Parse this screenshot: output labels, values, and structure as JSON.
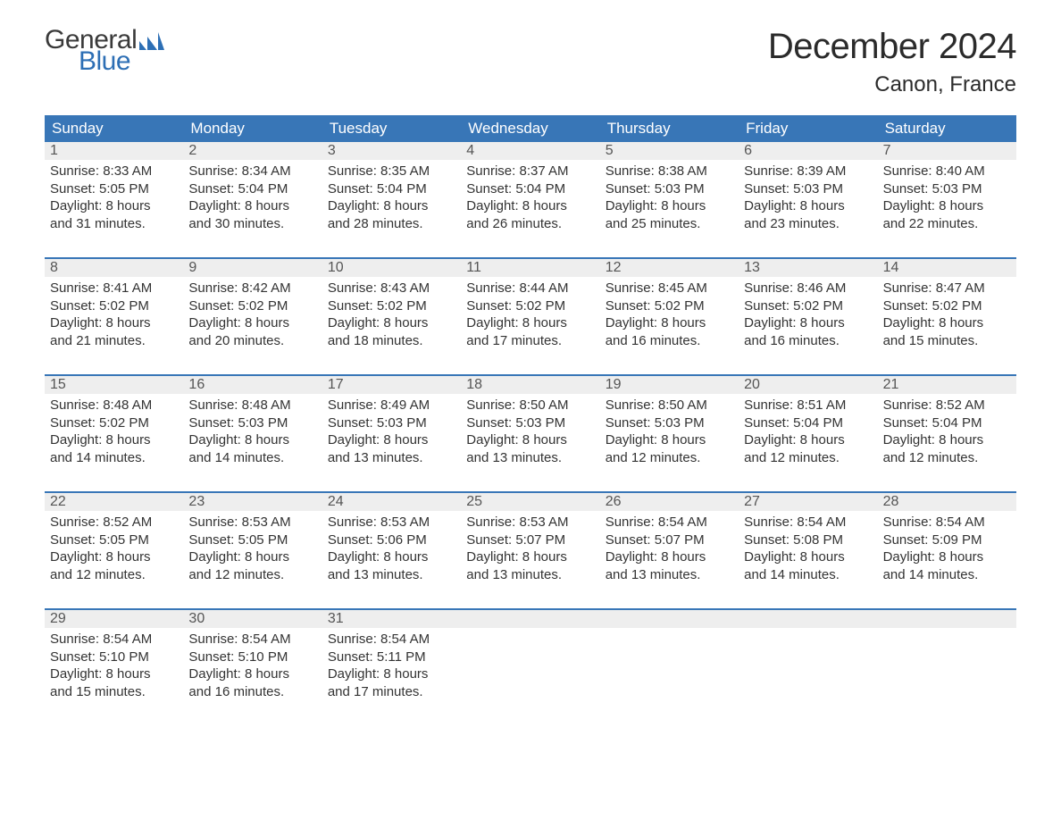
{
  "logo": {
    "text_general": "General",
    "text_blue": "Blue"
  },
  "title": "December 2024",
  "location": "Canon, France",
  "colors": {
    "header_bg": "#3876b7",
    "header_text": "#ffffff",
    "daynum_bg": "#eeeeee",
    "daynum_text": "#555555",
    "body_text": "#333333",
    "week_border": "#3876b7",
    "logo_blue": "#2d6fb5",
    "page_bg": "#ffffff"
  },
  "typography": {
    "title_fontsize": 40,
    "location_fontsize": 24,
    "header_fontsize": 17,
    "daynum_fontsize": 16,
    "body_fontsize": 15,
    "logo_fontsize": 30
  },
  "columns": [
    "Sunday",
    "Monday",
    "Tuesday",
    "Wednesday",
    "Thursday",
    "Friday",
    "Saturday"
  ],
  "weeks": [
    [
      {
        "num": "1",
        "sunrise": "Sunrise: 8:33 AM",
        "sunset": "Sunset: 5:05 PM",
        "day1": "Daylight: 8 hours",
        "day2": "and 31 minutes."
      },
      {
        "num": "2",
        "sunrise": "Sunrise: 8:34 AM",
        "sunset": "Sunset: 5:04 PM",
        "day1": "Daylight: 8 hours",
        "day2": "and 30 minutes."
      },
      {
        "num": "3",
        "sunrise": "Sunrise: 8:35 AM",
        "sunset": "Sunset: 5:04 PM",
        "day1": "Daylight: 8 hours",
        "day2": "and 28 minutes."
      },
      {
        "num": "4",
        "sunrise": "Sunrise: 8:37 AM",
        "sunset": "Sunset: 5:04 PM",
        "day1": "Daylight: 8 hours",
        "day2": "and 26 minutes."
      },
      {
        "num": "5",
        "sunrise": "Sunrise: 8:38 AM",
        "sunset": "Sunset: 5:03 PM",
        "day1": "Daylight: 8 hours",
        "day2": "and 25 minutes."
      },
      {
        "num": "6",
        "sunrise": "Sunrise: 8:39 AM",
        "sunset": "Sunset: 5:03 PM",
        "day1": "Daylight: 8 hours",
        "day2": "and 23 minutes."
      },
      {
        "num": "7",
        "sunrise": "Sunrise: 8:40 AM",
        "sunset": "Sunset: 5:03 PM",
        "day1": "Daylight: 8 hours",
        "day2": "and 22 minutes."
      }
    ],
    [
      {
        "num": "8",
        "sunrise": "Sunrise: 8:41 AM",
        "sunset": "Sunset: 5:02 PM",
        "day1": "Daylight: 8 hours",
        "day2": "and 21 minutes."
      },
      {
        "num": "9",
        "sunrise": "Sunrise: 8:42 AM",
        "sunset": "Sunset: 5:02 PM",
        "day1": "Daylight: 8 hours",
        "day2": "and 20 minutes."
      },
      {
        "num": "10",
        "sunrise": "Sunrise: 8:43 AM",
        "sunset": "Sunset: 5:02 PM",
        "day1": "Daylight: 8 hours",
        "day2": "and 18 minutes."
      },
      {
        "num": "11",
        "sunrise": "Sunrise: 8:44 AM",
        "sunset": "Sunset: 5:02 PM",
        "day1": "Daylight: 8 hours",
        "day2": "and 17 minutes."
      },
      {
        "num": "12",
        "sunrise": "Sunrise: 8:45 AM",
        "sunset": "Sunset: 5:02 PM",
        "day1": "Daylight: 8 hours",
        "day2": "and 16 minutes."
      },
      {
        "num": "13",
        "sunrise": "Sunrise: 8:46 AM",
        "sunset": "Sunset: 5:02 PM",
        "day1": "Daylight: 8 hours",
        "day2": "and 16 minutes."
      },
      {
        "num": "14",
        "sunrise": "Sunrise: 8:47 AM",
        "sunset": "Sunset: 5:02 PM",
        "day1": "Daylight: 8 hours",
        "day2": "and 15 minutes."
      }
    ],
    [
      {
        "num": "15",
        "sunrise": "Sunrise: 8:48 AM",
        "sunset": "Sunset: 5:02 PM",
        "day1": "Daylight: 8 hours",
        "day2": "and 14 minutes."
      },
      {
        "num": "16",
        "sunrise": "Sunrise: 8:48 AM",
        "sunset": "Sunset: 5:03 PM",
        "day1": "Daylight: 8 hours",
        "day2": "and 14 minutes."
      },
      {
        "num": "17",
        "sunrise": "Sunrise: 8:49 AM",
        "sunset": "Sunset: 5:03 PM",
        "day1": "Daylight: 8 hours",
        "day2": "and 13 minutes."
      },
      {
        "num": "18",
        "sunrise": "Sunrise: 8:50 AM",
        "sunset": "Sunset: 5:03 PM",
        "day1": "Daylight: 8 hours",
        "day2": "and 13 minutes."
      },
      {
        "num": "19",
        "sunrise": "Sunrise: 8:50 AM",
        "sunset": "Sunset: 5:03 PM",
        "day1": "Daylight: 8 hours",
        "day2": "and 12 minutes."
      },
      {
        "num": "20",
        "sunrise": "Sunrise: 8:51 AM",
        "sunset": "Sunset: 5:04 PM",
        "day1": "Daylight: 8 hours",
        "day2": "and 12 minutes."
      },
      {
        "num": "21",
        "sunrise": "Sunrise: 8:52 AM",
        "sunset": "Sunset: 5:04 PM",
        "day1": "Daylight: 8 hours",
        "day2": "and 12 minutes."
      }
    ],
    [
      {
        "num": "22",
        "sunrise": "Sunrise: 8:52 AM",
        "sunset": "Sunset: 5:05 PM",
        "day1": "Daylight: 8 hours",
        "day2": "and 12 minutes."
      },
      {
        "num": "23",
        "sunrise": "Sunrise: 8:53 AM",
        "sunset": "Sunset: 5:05 PM",
        "day1": "Daylight: 8 hours",
        "day2": "and 12 minutes."
      },
      {
        "num": "24",
        "sunrise": "Sunrise: 8:53 AM",
        "sunset": "Sunset: 5:06 PM",
        "day1": "Daylight: 8 hours",
        "day2": "and 13 minutes."
      },
      {
        "num": "25",
        "sunrise": "Sunrise: 8:53 AM",
        "sunset": "Sunset: 5:07 PM",
        "day1": "Daylight: 8 hours",
        "day2": "and 13 minutes."
      },
      {
        "num": "26",
        "sunrise": "Sunrise: 8:54 AM",
        "sunset": "Sunset: 5:07 PM",
        "day1": "Daylight: 8 hours",
        "day2": "and 13 minutes."
      },
      {
        "num": "27",
        "sunrise": "Sunrise: 8:54 AM",
        "sunset": "Sunset: 5:08 PM",
        "day1": "Daylight: 8 hours",
        "day2": "and 14 minutes."
      },
      {
        "num": "28",
        "sunrise": "Sunrise: 8:54 AM",
        "sunset": "Sunset: 5:09 PM",
        "day1": "Daylight: 8 hours",
        "day2": "and 14 minutes."
      }
    ],
    [
      {
        "num": "29",
        "sunrise": "Sunrise: 8:54 AM",
        "sunset": "Sunset: 5:10 PM",
        "day1": "Daylight: 8 hours",
        "day2": "and 15 minutes."
      },
      {
        "num": "30",
        "sunrise": "Sunrise: 8:54 AM",
        "sunset": "Sunset: 5:10 PM",
        "day1": "Daylight: 8 hours",
        "day2": "and 16 minutes."
      },
      {
        "num": "31",
        "sunrise": "Sunrise: 8:54 AM",
        "sunset": "Sunset: 5:11 PM",
        "day1": "Daylight: 8 hours",
        "day2": "and 17 minutes."
      },
      null,
      null,
      null,
      null
    ]
  ]
}
